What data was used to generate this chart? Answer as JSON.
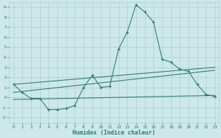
{
  "xlabel": "Humidex (Indice chaleur)",
  "x_values": [
    0,
    1,
    2,
    3,
    4,
    5,
    6,
    7,
    8,
    9,
    10,
    11,
    12,
    13,
    14,
    15,
    16,
    17,
    18,
    19,
    20,
    21,
    22,
    23
  ],
  "line1": [
    1.3,
    0.5,
    -0.1,
    -0.1,
    -1.2,
    -1.2,
    -1.1,
    -0.8,
    1.0,
    2.2,
    1.0,
    1.1,
    4.8,
    6.5,
    9.2,
    8.5,
    7.5,
    3.8,
    3.5,
    2.8,
    2.6,
    1.3,
    0.3,
    0.1
  ],
  "line2_x": [
    0,
    23
  ],
  "line2_y": [
    1.3,
    3.0
  ],
  "line3_x": [
    0,
    23
  ],
  "line3_y": [
    0.5,
    2.7
  ],
  "line4_x": [
    0,
    23
  ],
  "line4_y": [
    -0.2,
    0.2
  ],
  "line_color": "#2d7b6b",
  "bg_color": "#cce8e8",
  "grid_color": "#aacece",
  "ylim": [
    -2.5,
    9.5
  ],
  "xlim": [
    -0.5,
    23.5
  ],
  "yticks": [
    -2,
    -1,
    0,
    1,
    2,
    3,
    4,
    5,
    6,
    7,
    8,
    9
  ],
  "xticks": [
    0,
    1,
    2,
    3,
    4,
    5,
    6,
    7,
    8,
    9,
    10,
    11,
    12,
    13,
    14,
    15,
    16,
    17,
    18,
    19,
    20,
    21,
    22,
    23
  ]
}
